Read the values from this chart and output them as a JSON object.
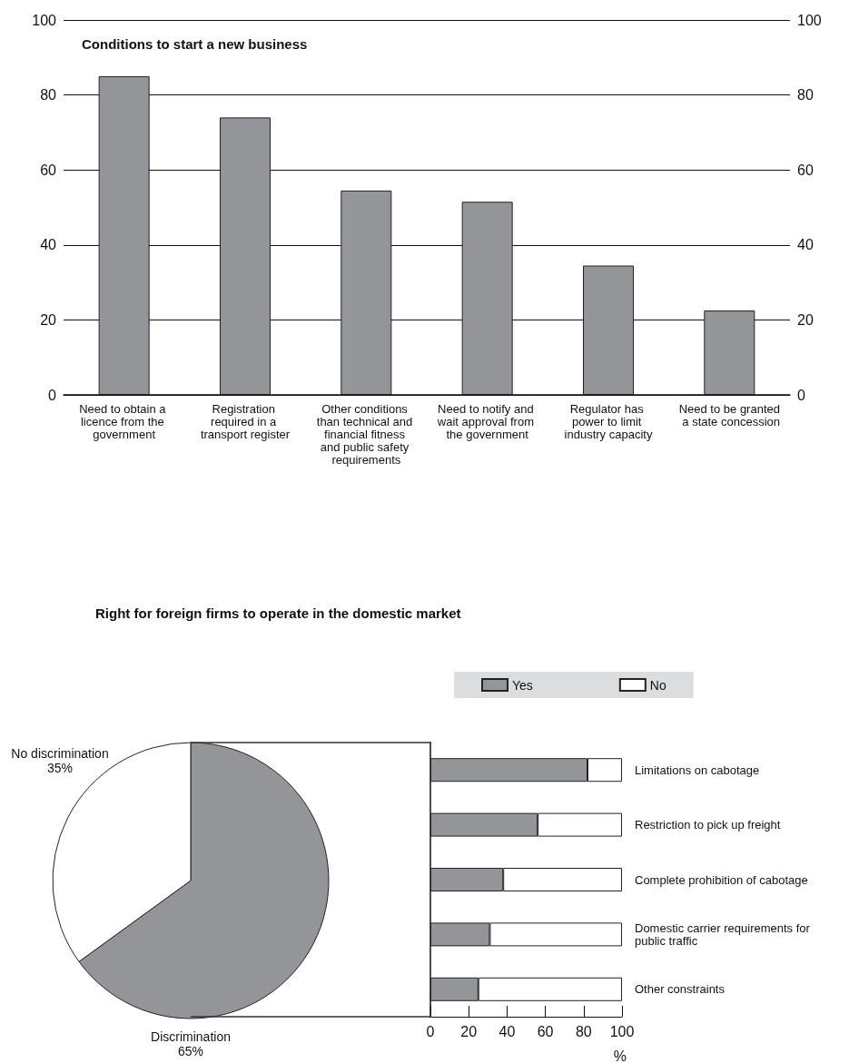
{
  "chart_data": [
    {
      "type": "bar",
      "title": "Conditions to start a new business",
      "categories": [
        "Need to obtain a licence from the government",
        "Registration required in a transport register",
        "Other conditions than technical and financial fitness and public safety requirements",
        "Need to notify and wait approval from the government",
        "Regulator has power to limit industry capacity",
        "Need to be granted a state concession"
      ],
      "values": [
        85,
        74,
        54.5,
        51.5,
        34.5,
        22.5
      ],
      "color": "#939598",
      "ylim": [
        0,
        100
      ],
      "yticks": [
        0,
        20,
        40,
        60,
        80,
        100
      ],
      "y2lim": [
        0,
        100
      ],
      "y2ticks": [
        0,
        20,
        40,
        60,
        80,
        100
      ],
      "grid": "y"
    },
    {
      "type": "pie",
      "title": "Right for foreign firms to operate in the domestic market",
      "categories": [
        "Discrimination",
        "No discrimination"
      ],
      "values": [
        65,
        35
      ],
      "colors": [
        "#939598",
        "#ffffff"
      ],
      "value_labels": [
        "65%",
        "35%"
      ]
    },
    {
      "type": "bar",
      "orientation": "horizontal",
      "stacked": true,
      "categories": [
        "Limitations on cabotage",
        "Restriction to pick up freight",
        "Complete prohibition of cabotage",
        "Domestic carrier requirements for public traffic",
        "Other constraints"
      ],
      "series": [
        {
          "name": "Yes",
          "color": "#939598",
          "values": [
            82,
            56,
            38,
            31,
            25
          ]
        },
        {
          "name": "No",
          "color": "#ffffff",
          "values": [
            18,
            44,
            62,
            69,
            75
          ]
        }
      ],
      "xlim": [
        0,
        100
      ],
      "xticks": [
        0,
        20,
        40,
        60,
        80,
        100
      ],
      "xlabel": "%",
      "legend": "top",
      "grid": false
    }
  ]
}
